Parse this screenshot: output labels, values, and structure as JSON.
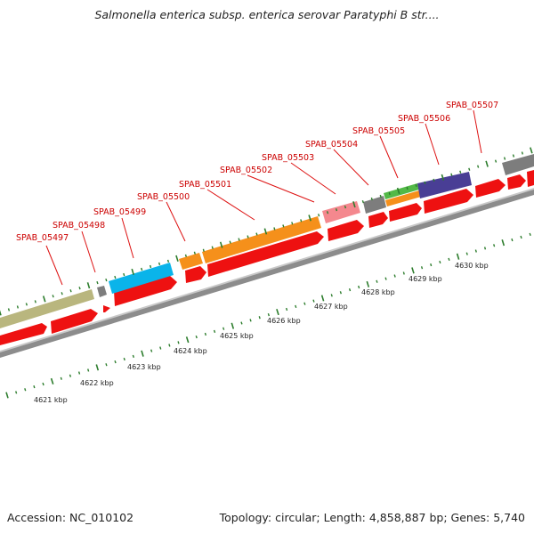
{
  "header": {
    "title": "Salmonella enterica subsp. enterica serovar Paratyphi B str...."
  },
  "footer": {
    "accession": "Accession: NC_010102",
    "topology": "Topology: circular; Length: 4,858,887 bp; Genes: 5,740"
  },
  "colors": {
    "backbone": "#8c8c8c",
    "cds_red": "#ee1111",
    "tick_green": "#2d7d2d",
    "label_red": "#cc0000"
  },
  "gene_labels": [
    "SPAB_05497",
    "SPAB_05498",
    "SPAB_05499",
    "SPAB_05500",
    "SPAB_05501",
    "SPAB_05502",
    "SPAB_05503",
    "SPAB_05504",
    "SPAB_05505",
    "SPAB_05506",
    "SPAB_05507"
  ],
  "kbp_labels": [
    "4621 kbp",
    "4622 kbp",
    "4623 kbp",
    "4624 kbp",
    "4625 kbp",
    "4626 kbp",
    "4627 kbp",
    "4628 kbp",
    "4629 kbp",
    "4630 kbp"
  ],
  "feature_colors": [
    "#b9b67e",
    "#0ab4ea",
    "#f5901b",
    "#f4888e",
    "#52b947",
    "#493e95",
    "#7d7d7d"
  ]
}
